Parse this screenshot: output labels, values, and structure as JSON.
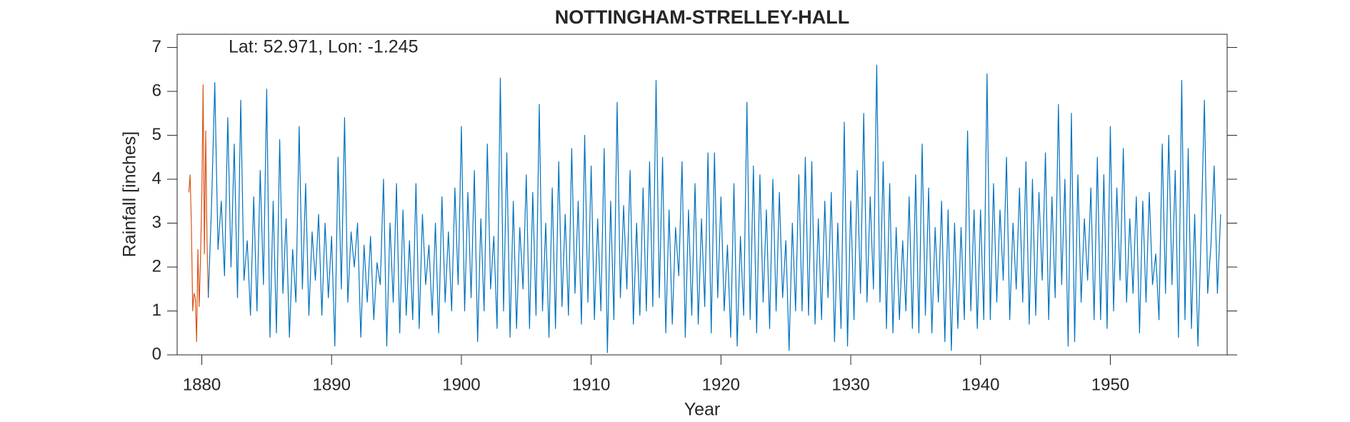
{
  "chart_data": {
    "type": "line",
    "title": "NOTTINGHAM-STRELLEY-HALL",
    "annotation": "Lat: 52.971, Lon: -1.245",
    "x_label": "Year",
    "y_label": "Rainfall [inches]",
    "xlim": [
      1878.1,
      1959.0
    ],
    "ylim": [
      0,
      7.3
    ],
    "xticks": [
      1880,
      1890,
      1900,
      1910,
      1920,
      1930,
      1940,
      1950
    ],
    "yticks": [
      0,
      1,
      2,
      3,
      4,
      5,
      6,
      7
    ],
    "grid": false,
    "series": [
      {
        "color": "#d95319",
        "x": [
          1879,
          1879.1,
          1879.2,
          1879.3,
          1879.4,
          1879.5,
          1879.6,
          1879.7,
          1879.8,
          1879.9,
          1880,
          1880.1,
          1880.2,
          1880.3,
          1880.4,
          1880.5
        ],
        "values": [
          3.7,
          4.1,
          2.9,
          1.0,
          1.4,
          1.3,
          0.3,
          2.4,
          1.1,
          2.2,
          3.6,
          6.15,
          2.3,
          5.1,
          2.6,
          1.3
        ]
      },
      {
        "color": "#0072bd",
        "x": [
          1880.5,
          1880.75,
          1881,
          1881.25,
          1881.5,
          1881.75,
          1882,
          1882.25,
          1882.5,
          1882.75,
          1883,
          1883.25,
          1883.5,
          1883.75,
          1884,
          1884.25,
          1884.5,
          1884.75,
          1885,
          1885.25,
          1885.5,
          1885.75,
          1886,
          1886.25,
          1886.5,
          1886.75,
          1887,
          1887.25,
          1887.5,
          1887.75,
          1888,
          1888.25,
          1888.5,
          1888.75,
          1889,
          1889.25,
          1889.5,
          1889.75,
          1890,
          1890.25,
          1890.5,
          1890.75,
          1891,
          1891.25,
          1891.5,
          1891.75,
          1892,
          1892.25,
          1892.5,
          1892.75,
          1893,
          1893.25,
          1893.5,
          1893.75,
          1894,
          1894.25,
          1894.5,
          1894.75,
          1895,
          1895.25,
          1895.5,
          1895.75,
          1896,
          1896.25,
          1896.5,
          1896.75,
          1897,
          1897.25,
          1897.5,
          1897.75,
          1898,
          1898.25,
          1898.5,
          1898.75,
          1899,
          1899.25,
          1899.5,
          1899.75,
          1900,
          1900.25,
          1900.5,
          1900.75,
          1901,
          1901.25,
          1901.5,
          1901.75,
          1902,
          1902.25,
          1902.5,
          1902.75,
          1903,
          1903.25,
          1903.5,
          1903.75,
          1904,
          1904.25,
          1904.5,
          1904.75,
          1905,
          1905.25,
          1905.5,
          1905.75,
          1906,
          1906.25,
          1906.5,
          1906.75,
          1907,
          1907.25,
          1907.5,
          1907.75,
          1908,
          1908.25,
          1908.5,
          1908.75,
          1909,
          1909.25,
          1909.5,
          1909.75,
          1910,
          1910.25,
          1910.5,
          1910.75,
          1911,
          1911.25,
          1911.5,
          1911.75,
          1912,
          1912.25,
          1912.5,
          1912.75,
          1913,
          1913.25,
          1913.5,
          1913.75,
          1914,
          1914.25,
          1914.5,
          1914.75,
          1915,
          1915.25,
          1915.5,
          1915.75,
          1916,
          1916.25,
          1916.5,
          1916.75,
          1917,
          1917.25,
          1917.5,
          1917.75,
          1918,
          1918.25,
          1918.5,
          1918.75,
          1919,
          1919.25,
          1919.5,
          1919.75,
          1920,
          1920.25,
          1920.5,
          1920.75,
          1921,
          1921.25,
          1921.5,
          1921.75,
          1922,
          1922.25,
          1922.5,
          1922.75,
          1923,
          1923.25,
          1923.5,
          1923.75,
          1924,
          1924.25,
          1924.5,
          1924.75,
          1925,
          1925.25,
          1925.5,
          1925.75,
          1926,
          1926.25,
          1926.5,
          1926.75,
          1927,
          1927.25,
          1927.5,
          1927.75,
          1928,
          1928.25,
          1928.5,
          1928.75,
          1929,
          1929.25,
          1929.5,
          1929.75,
          1930,
          1930.25,
          1930.5,
          1930.75,
          1931,
          1931.25,
          1931.5,
          1931.75,
          1932,
          1932.25,
          1932.5,
          1932.75,
          1933,
          1933.25,
          1933.5,
          1933.75,
          1934,
          1934.25,
          1934.5,
          1934.75,
          1935,
          1935.25,
          1935.5,
          1935.75,
          1936,
          1936.25,
          1936.5,
          1936.75,
          1937,
          1937.25,
          1937.5,
          1937.75,
          1938,
          1938.25,
          1938.5,
          1938.75,
          1939,
          1939.25,
          1939.5,
          1939.75,
          1940,
          1940.25,
          1940.5,
          1940.75,
          1941,
          1941.25,
          1941.5,
          1941.75,
          1942,
          1942.25,
          1942.5,
          1942.75,
          1943,
          1943.25,
          1943.5,
          1943.75,
          1944,
          1944.25,
          1944.5,
          1944.75,
          1945,
          1945.25,
          1945.5,
          1945.75,
          1946,
          1946.25,
          1946.5,
          1946.75,
          1947,
          1947.25,
          1947.5,
          1947.75,
          1948,
          1948.25,
          1948.5,
          1948.75,
          1949,
          1949.25,
          1949.5,
          1949.75,
          1950,
          1950.25,
          1950.5,
          1950.75,
          1951,
          1951.25,
          1951.5,
          1951.75,
          1952,
          1952.25,
          1952.5,
          1952.75,
          1953,
          1953.25,
          1953.5,
          1953.75,
          1954,
          1954.25,
          1954.5,
          1954.75,
          1955,
          1955.25,
          1955.5,
          1955.75,
          1956,
          1956.25,
          1956.5,
          1956.75,
          1957,
          1957.25,
          1957.5,
          1957.75,
          1958,
          1958.25,
          1958.5
        ],
        "values": [
          1.3,
          3.4,
          6.2,
          2.4,
          3.5,
          1.8,
          5.4,
          2.0,
          4.8,
          1.3,
          5.8,
          1.7,
          2.6,
          0.9,
          3.6,
          1.0,
          4.2,
          1.6,
          6.05,
          0.4,
          3.5,
          0.5,
          4.9,
          1.4,
          3.1,
          0.4,
          2.4,
          1.2,
          5.2,
          1.5,
          3.9,
          0.9,
          2.8,
          1.7,
          3.2,
          0.9,
          3.0,
          1.3,
          2.7,
          0.2,
          4.5,
          1.5,
          5.4,
          1.2,
          2.8,
          2.0,
          3.0,
          0.4,
          2.5,
          1.2,
          2.7,
          0.8,
          2.1,
          1.6,
          4.0,
          0.2,
          3.0,
          1.2,
          3.9,
          0.5,
          3.3,
          0.9,
          2.6,
          0.8,
          3.9,
          0.6,
          3.2,
          1.6,
          2.5,
          0.9,
          3.0,
          0.5,
          3.6,
          1.2,
          2.8,
          1.0,
          3.8,
          1.6,
          5.2,
          1.0,
          3.7,
          1.3,
          4.2,
          0.3,
          3.1,
          1.0,
          4.8,
          1.5,
          2.7,
          0.6,
          6.3,
          1.0,
          4.6,
          0.4,
          3.5,
          0.6,
          2.9,
          1.5,
          4.1,
          0.6,
          3.7,
          0.9,
          5.7,
          1.0,
          3.0,
          0.4,
          3.8,
          0.6,
          4.4,
          1.1,
          3.2,
          0.9,
          4.7,
          1.4,
          3.5,
          0.7,
          5.0,
          1.2,
          4.3,
          0.8,
          3.1,
          1.0,
          4.7,
          0.05,
          3.5,
          0.8,
          5.75,
          1.3,
          3.4,
          1.5,
          4.2,
          0.7,
          3.0,
          0.9,
          3.8,
          1.0,
          4.4,
          1.1,
          6.25,
          1.3,
          4.5,
          0.5,
          3.3,
          0.7,
          2.9,
          1.8,
          4.4,
          0.4,
          3.3,
          0.9,
          3.9,
          0.7,
          3.1,
          1.1,
          4.6,
          0.5,
          4.6,
          1.3,
          3.6,
          1.0,
          2.5,
          0.4,
          3.9,
          0.2,
          2.7,
          0.9,
          5.75,
          0.8,
          4.3,
          0.5,
          4.1,
          1.2,
          3.3,
          0.6,
          4.0,
          1.0,
          3.7,
          1.3,
          2.6,
          0.1,
          3.0,
          1.0,
          4.1,
          1.0,
          4.5,
          0.9,
          4.4,
          0.7,
          3.1,
          0.8,
          3.5,
          1.3,
          3.7,
          0.3,
          3.0,
          0.6,
          5.3,
          0.2,
          3.5,
          0.8,
          4.2,
          1.4,
          5.5,
          1.2,
          3.6,
          1.5,
          6.6,
          1.2,
          4.4,
          0.6,
          3.9,
          0.5,
          2.9,
          0.8,
          2.6,
          1.0,
          3.6,
          0.6,
          4.1,
          0.5,
          4.8,
          0.9,
          3.8,
          0.5,
          2.9,
          1.2,
          3.5,
          0.3,
          3.3,
          0.1,
          3.0,
          0.6,
          2.9,
          0.8,
          5.1,
          1.0,
          3.3,
          0.6,
          3.3,
          0.8,
          6.4,
          0.8,
          3.9,
          1.2,
          3.3,
          1.7,
          4.5,
          0.8,
          3.0,
          1.5,
          3.8,
          1.2,
          4.4,
          0.7,
          4.0,
          0.9,
          3.7,
          1.7,
          4.6,
          0.8,
          3.6,
          1.3,
          5.7,
          1.6,
          4.0,
          0.2,
          5.5,
          0.3,
          4.1,
          1.2,
          3.1,
          1.7,
          3.8,
          0.8,
          4.5,
          0.8,
          4.1,
          0.6,
          5.2,
          1.0,
          3.8,
          1.7,
          4.7,
          1.2,
          3.1,
          1.4,
          3.6,
          0.5,
          3.5,
          1.2,
          3.7,
          1.6,
          2.3,
          0.8,
          4.8,
          1.4,
          5.0,
          1.6,
          4.2,
          0.4,
          6.25,
          0.8,
          4.7,
          0.6,
          3.2,
          0.2,
          2.8,
          5.8,
          1.4,
          2.5,
          4.3,
          1.4,
          3.2
        ]
      }
    ]
  }
}
